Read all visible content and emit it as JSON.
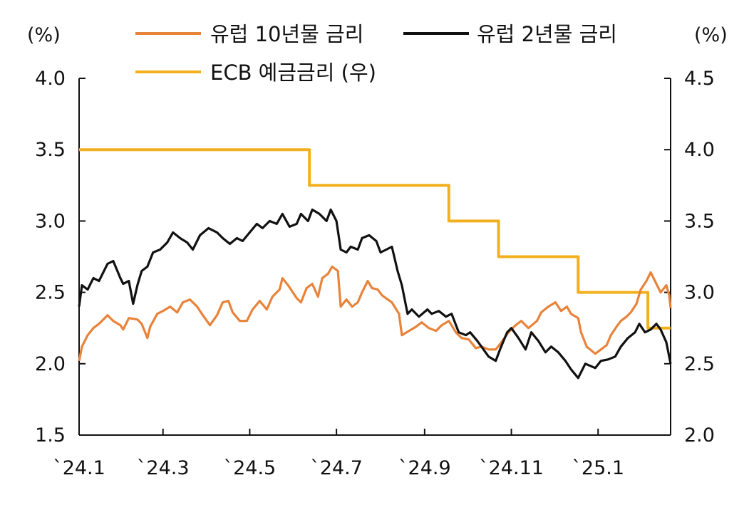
{
  "chart_data": {
    "type": "line",
    "title": "",
    "left_axis": {
      "unit_label": "(%)",
      "ylim": [
        1.5,
        4.0
      ],
      "ticks": [
        "1.5",
        "2.0",
        "2.5",
        "3.0",
        "3.5",
        "4.0"
      ]
    },
    "right_axis": {
      "unit_label": "(%)",
      "ylim": [
        2.0,
        4.5
      ],
      "ticks": [
        "2.0",
        "2.5",
        "3.0",
        "3.5",
        "4.0",
        "4.5"
      ]
    },
    "x_axis": {
      "start": "2024-01-02",
      "end": "2025-02-21",
      "ticks": [
        {
          "date": "2024-01-02",
          "label": "`24.1"
        },
        {
          "date": "2024-03-01",
          "label": "`24.3"
        },
        {
          "date": "2024-05-01",
          "label": "`24.5"
        },
        {
          "date": "2024-07-01",
          "label": "`24.7"
        },
        {
          "date": "2024-09-01",
          "label": "`24.9"
        },
        {
          "date": "2024-11-01",
          "label": "`24.11"
        },
        {
          "date": "2025-01-01",
          "label": "`25.1"
        }
      ]
    },
    "grid": false,
    "legend_position": "top",
    "series": [
      {
        "name": "유럽 10년물 금리",
        "axis": "left",
        "color": "#E8833A",
        "points": [
          [
            "2024-01-02",
            2.02
          ],
          [
            "2024-01-04",
            2.12
          ],
          [
            "2024-01-08",
            2.2
          ],
          [
            "2024-01-12",
            2.25
          ],
          [
            "2024-01-16",
            2.28
          ],
          [
            "2024-01-22",
            2.34
          ],
          [
            "2024-01-26",
            2.3
          ],
          [
            "2024-01-31",
            2.27
          ],
          [
            "2024-02-02",
            2.24
          ],
          [
            "2024-02-06",
            2.32
          ],
          [
            "2024-02-12",
            2.31
          ],
          [
            "2024-02-15",
            2.28
          ],
          [
            "2024-02-19",
            2.18
          ],
          [
            "2024-02-21",
            2.26
          ],
          [
            "2024-02-26",
            2.35
          ],
          [
            "2024-03-01",
            2.37
          ],
          [
            "2024-03-06",
            2.4
          ],
          [
            "2024-03-11",
            2.36
          ],
          [
            "2024-03-15",
            2.43
          ],
          [
            "2024-03-20",
            2.45
          ],
          [
            "2024-03-25",
            2.4
          ],
          [
            "2024-03-29",
            2.34
          ],
          [
            "2024-04-03",
            2.27
          ],
          [
            "2024-04-08",
            2.34
          ],
          [
            "2024-04-12",
            2.43
          ],
          [
            "2024-04-16",
            2.44
          ],
          [
            "2024-04-19",
            2.36
          ],
          [
            "2024-04-24",
            2.3
          ],
          [
            "2024-04-29",
            2.3
          ],
          [
            "2024-05-03",
            2.38
          ],
          [
            "2024-05-08",
            2.44
          ],
          [
            "2024-05-13",
            2.38
          ],
          [
            "2024-05-17",
            2.47
          ],
          [
            "2024-05-22",
            2.52
          ],
          [
            "2024-05-24",
            2.6
          ],
          [
            "2024-05-28",
            2.55
          ],
          [
            "2024-06-03",
            2.46
          ],
          [
            "2024-06-06",
            2.43
          ],
          [
            "2024-06-10",
            2.53
          ],
          [
            "2024-06-14",
            2.56
          ],
          [
            "2024-06-18",
            2.47
          ],
          [
            "2024-06-21",
            2.6
          ],
          [
            "2024-06-25",
            2.63
          ],
          [
            "2024-06-28",
            2.68
          ],
          [
            "2024-07-02",
            2.65
          ],
          [
            "2024-07-04",
            2.4
          ],
          [
            "2024-07-08",
            2.45
          ],
          [
            "2024-07-12",
            2.4
          ],
          [
            "2024-07-16",
            2.43
          ],
          [
            "2024-07-19",
            2.5
          ],
          [
            "2024-07-23",
            2.58
          ],
          [
            "2024-07-26",
            2.53
          ],
          [
            "2024-07-30",
            2.52
          ],
          [
            "2024-08-02",
            2.48
          ],
          [
            "2024-08-06",
            2.45
          ],
          [
            "2024-08-09",
            2.43
          ],
          [
            "2024-08-14",
            2.35
          ],
          [
            "2024-08-16",
            2.2
          ],
          [
            "2024-08-21",
            2.23
          ],
          [
            "2024-08-26",
            2.26
          ],
          [
            "2024-08-30",
            2.29
          ],
          [
            "2024-09-04",
            2.25
          ],
          [
            "2024-09-09",
            2.23
          ],
          [
            "2024-09-13",
            2.27
          ],
          [
            "2024-09-18",
            2.3
          ],
          [
            "2024-09-23",
            2.22
          ],
          [
            "2024-09-27",
            2.18
          ],
          [
            "2024-10-02",
            2.17
          ],
          [
            "2024-10-07",
            2.11
          ],
          [
            "2024-10-11",
            2.12
          ],
          [
            "2024-10-16",
            2.1
          ],
          [
            "2024-10-21",
            2.1
          ],
          [
            "2024-10-25",
            2.15
          ],
          [
            "2024-10-30",
            2.22
          ],
          [
            "2024-11-04",
            2.27
          ],
          [
            "2024-11-08",
            2.3
          ],
          [
            "2024-11-13",
            2.25
          ],
          [
            "2024-11-19",
            2.3
          ],
          [
            "2024-11-22",
            2.36
          ],
          [
            "2024-11-27",
            2.4
          ],
          [
            "2024-12-02",
            2.43
          ],
          [
            "2024-12-06",
            2.37
          ],
          [
            "2024-12-10",
            2.4
          ],
          [
            "2024-12-13",
            2.35
          ],
          [
            "2024-12-18",
            2.32
          ],
          [
            "2024-12-20",
            2.22
          ],
          [
            "2024-12-24",
            2.12
          ],
          [
            "2024-12-30",
            2.07
          ],
          [
            "2025-01-03",
            2.1
          ],
          [
            "2025-01-07",
            2.13
          ],
          [
            "2025-01-10",
            2.2
          ],
          [
            "2025-01-14",
            2.26
          ],
          [
            "2025-01-17",
            2.3
          ],
          [
            "2025-01-21",
            2.33
          ],
          [
            "2025-01-24",
            2.36
          ],
          [
            "2025-01-28",
            2.42
          ],
          [
            "2025-01-31",
            2.52
          ],
          [
            "2025-02-04",
            2.58
          ],
          [
            "2025-02-07",
            2.64
          ],
          [
            "2025-02-11",
            2.56
          ],
          [
            "2025-02-14",
            2.5
          ],
          [
            "2025-02-18",
            2.55
          ],
          [
            "2025-02-20",
            2.48
          ],
          [
            "2025-02-21",
            2.39
          ]
        ]
      },
      {
        "name": "유럽 2년물 금리",
        "axis": "left",
        "color": "#111111",
        "points": [
          [
            "2024-01-02",
            2.4
          ],
          [
            "2024-01-04",
            2.55
          ],
          [
            "2024-01-08",
            2.52
          ],
          [
            "2024-01-12",
            2.6
          ],
          [
            "2024-01-16",
            2.58
          ],
          [
            "2024-01-22",
            2.7
          ],
          [
            "2024-01-26",
            2.72
          ],
          [
            "2024-01-31",
            2.6
          ],
          [
            "2024-02-02",
            2.56
          ],
          [
            "2024-02-06",
            2.58
          ],
          [
            "2024-02-09",
            2.42
          ],
          [
            "2024-02-12",
            2.55
          ],
          [
            "2024-02-15",
            2.65
          ],
          [
            "2024-02-19",
            2.68
          ],
          [
            "2024-02-23",
            2.78
          ],
          [
            "2024-02-28",
            2.8
          ],
          [
            "2024-03-04",
            2.85
          ],
          [
            "2024-03-08",
            2.92
          ],
          [
            "2024-03-13",
            2.88
          ],
          [
            "2024-03-18",
            2.85
          ],
          [
            "2024-03-22",
            2.8
          ],
          [
            "2024-03-27",
            2.9
          ],
          [
            "2024-04-02",
            2.95
          ],
          [
            "2024-04-08",
            2.92
          ],
          [
            "2024-04-12",
            2.88
          ],
          [
            "2024-04-17",
            2.84
          ],
          [
            "2024-04-22",
            2.88
          ],
          [
            "2024-04-26",
            2.86
          ],
          [
            "2024-05-01",
            2.92
          ],
          [
            "2024-05-06",
            2.98
          ],
          [
            "2024-05-10",
            2.95
          ],
          [
            "2024-05-15",
            3.0
          ],
          [
            "2024-05-20",
            2.98
          ],
          [
            "2024-05-24",
            3.05
          ],
          [
            "2024-05-29",
            2.96
          ],
          [
            "2024-06-03",
            2.98
          ],
          [
            "2024-06-06",
            3.05
          ],
          [
            "2024-06-11",
            3.0
          ],
          [
            "2024-06-14",
            3.08
          ],
          [
            "2024-06-19",
            3.05
          ],
          [
            "2024-06-24",
            3.0
          ],
          [
            "2024-06-27",
            3.08
          ],
          [
            "2024-07-01",
            3.0
          ],
          [
            "2024-07-04",
            2.8
          ],
          [
            "2024-07-08",
            2.78
          ],
          [
            "2024-07-11",
            2.82
          ],
          [
            "2024-07-16",
            2.8
          ],
          [
            "2024-07-19",
            2.88
          ],
          [
            "2024-07-24",
            2.9
          ],
          [
            "2024-07-29",
            2.86
          ],
          [
            "2024-08-01",
            2.78
          ],
          [
            "2024-08-05",
            2.8
          ],
          [
            "2024-08-09",
            2.82
          ],
          [
            "2024-08-13",
            2.65
          ],
          [
            "2024-08-16",
            2.55
          ],
          [
            "2024-08-20",
            2.35
          ],
          [
            "2024-08-23",
            2.38
          ],
          [
            "2024-08-28",
            2.33
          ],
          [
            "2024-09-03",
            2.38
          ],
          [
            "2024-09-06",
            2.35
          ],
          [
            "2024-09-11",
            2.37
          ],
          [
            "2024-09-16",
            2.33
          ],
          [
            "2024-09-20",
            2.35
          ],
          [
            "2024-09-25",
            2.22
          ],
          [
            "2024-09-30",
            2.2
          ],
          [
            "2024-10-03",
            2.22
          ],
          [
            "2024-10-08",
            2.16
          ],
          [
            "2024-10-11",
            2.12
          ],
          [
            "2024-10-16",
            2.05
          ],
          [
            "2024-10-21",
            2.02
          ],
          [
            "2024-10-24",
            2.1
          ],
          [
            "2024-10-29",
            2.22
          ],
          [
            "2024-11-01",
            2.25
          ],
          [
            "2024-11-06",
            2.18
          ],
          [
            "2024-11-11",
            2.1
          ],
          [
            "2024-11-15",
            2.22
          ],
          [
            "2024-11-20",
            2.16
          ],
          [
            "2024-11-25",
            2.08
          ],
          [
            "2024-11-29",
            2.12
          ],
          [
            "2024-12-04",
            2.08
          ],
          [
            "2024-12-09",
            2.02
          ],
          [
            "2024-12-13",
            1.96
          ],
          [
            "2024-12-18",
            1.9
          ],
          [
            "2024-12-23",
            2.0
          ],
          [
            "2024-12-30",
            1.97
          ],
          [
            "2025-01-03",
            2.02
          ],
          [
            "2025-01-08",
            2.03
          ],
          [
            "2025-01-13",
            2.05
          ],
          [
            "2025-01-17",
            2.12
          ],
          [
            "2025-01-22",
            2.18
          ],
          [
            "2025-01-27",
            2.22
          ],
          [
            "2025-01-30",
            2.28
          ],
          [
            "2025-02-03",
            2.22
          ],
          [
            "2025-02-07",
            2.24
          ],
          [
            "2025-02-11",
            2.28
          ],
          [
            "2025-02-14",
            2.24
          ],
          [
            "2025-02-18",
            2.15
          ],
          [
            "2025-02-20",
            2.05
          ],
          [
            "2025-02-21",
            2.0
          ]
        ]
      },
      {
        "name": "ECB 예금금리 (우)",
        "axis": "right",
        "color": "#F2B01E",
        "step": true,
        "points": [
          [
            "2024-01-02",
            4.0
          ],
          [
            "2024-06-12",
            3.75
          ],
          [
            "2024-09-18",
            3.5
          ],
          [
            "2024-10-23",
            3.25
          ],
          [
            "2024-12-18",
            3.0
          ],
          [
            "2025-02-05",
            2.75
          ],
          [
            "2025-02-21",
            2.75
          ]
        ]
      }
    ]
  }
}
